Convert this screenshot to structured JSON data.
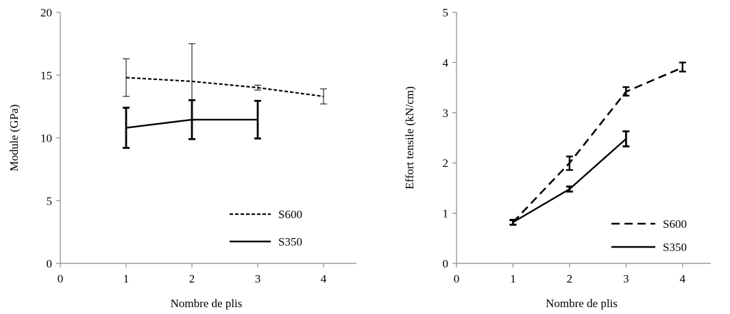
{
  "chart_data": [
    {
      "type": "line",
      "xlabel": "Nombre de plis",
      "ylabel": "Module (GPa)",
      "xlim": [
        0,
        4.5
      ],
      "ylim": [
        0,
        20
      ],
      "xticks": [
        "0",
        "1",
        "2",
        "3",
        "4"
      ],
      "yticks": [
        "0",
        "5",
        "10",
        "15",
        "20"
      ],
      "legend_position": "bottom-right",
      "series": [
        {
          "name": "S600",
          "style": "dotted",
          "x": [
            1,
            2,
            3,
            4
          ],
          "values": [
            14.8,
            14.5,
            14.0,
            13.3
          ],
          "err_low": [
            13.3,
            11.4,
            13.8,
            12.7
          ],
          "err_high": [
            16.3,
            17.5,
            14.2,
            13.9
          ]
        },
        {
          "name": "S350",
          "style": "solid",
          "x": [
            1,
            2,
            3
          ],
          "values": [
            10.8,
            11.45,
            11.45
          ],
          "err_low": [
            9.2,
            9.9,
            9.95
          ],
          "err_high": [
            12.4,
            13.0,
            12.95
          ]
        }
      ]
    },
    {
      "type": "line",
      "xlabel": "Nombre de plis",
      "ylabel": "Effort tensile (kN/cm)",
      "xlim": [
        0,
        4.5
      ],
      "ylim": [
        0,
        5
      ],
      "xticks": [
        "0",
        "1",
        "2",
        "3",
        "4"
      ],
      "yticks": [
        "0",
        "1",
        "2",
        "3",
        "4",
        "5"
      ],
      "legend_position": "bottom-right",
      "series": [
        {
          "name": "S600",
          "style": "dashed",
          "x": [
            1,
            2,
            3,
            4
          ],
          "values": [
            0.82,
            2.0,
            3.42,
            3.9
          ],
          "err_low": [
            0.77,
            1.86,
            3.34,
            3.82
          ],
          "err_high": [
            0.87,
            2.13,
            3.51,
            4.0
          ]
        },
        {
          "name": "S350",
          "style": "solid",
          "x": [
            1,
            2,
            3
          ],
          "values": [
            0.82,
            1.48,
            2.48
          ],
          "err_low": [
            0.77,
            1.43,
            2.33
          ],
          "err_high": [
            0.86,
            1.53,
            2.63
          ]
        }
      ]
    }
  ]
}
